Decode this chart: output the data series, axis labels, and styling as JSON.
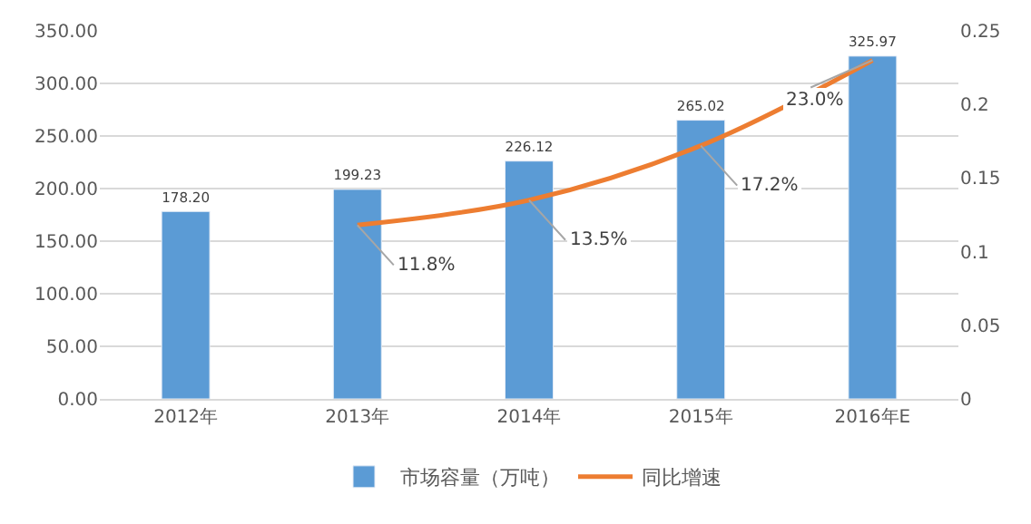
{
  "chart_data": {
    "type": "bar",
    "categories": [
      "2012年",
      "2013年",
      "2014年",
      "2015年",
      "2016年E"
    ],
    "series": [
      {
        "name": "市场容量（万吨）",
        "color": "#5b9bd5",
        "values": [
          178.2,
          199.23,
          226.12,
          265.02,
          325.97
        ],
        "value_labels": [
          "178.20",
          "199.23",
          "226.12",
          "265.02",
          "325.97"
        ]
      },
      {
        "name": "同比增速",
        "type": "line",
        "axis": "y2",
        "color": "#ed7d31",
        "values": [
          null,
          0.118,
          0.135,
          0.172,
          0.23
        ],
        "value_labels": [
          null,
          "11.8%",
          "13.5%",
          "17.2%",
          "23.0%"
        ]
      }
    ],
    "ylim": [
      0,
      350
    ],
    "yticks": [
      {
        "value": 0,
        "label": "0.00"
      },
      {
        "value": 50,
        "label": "50.00"
      },
      {
        "value": 100,
        "label": "100.00"
      },
      {
        "value": 150,
        "label": "150.00"
      },
      {
        "value": 200,
        "label": "200.00"
      },
      {
        "value": 250,
        "label": "250.00"
      },
      {
        "value": 300,
        "label": "300.00"
      },
      {
        "value": 350,
        "label": "350.00"
      }
    ],
    "y2lim": [
      0,
      0.25
    ],
    "y2ticks": [
      0,
      0.05,
      0.1,
      0.15,
      0.2,
      0.25
    ],
    "grid": "y",
    "legend": "bottom",
    "marker": "none",
    "line_style": "solid"
  }
}
